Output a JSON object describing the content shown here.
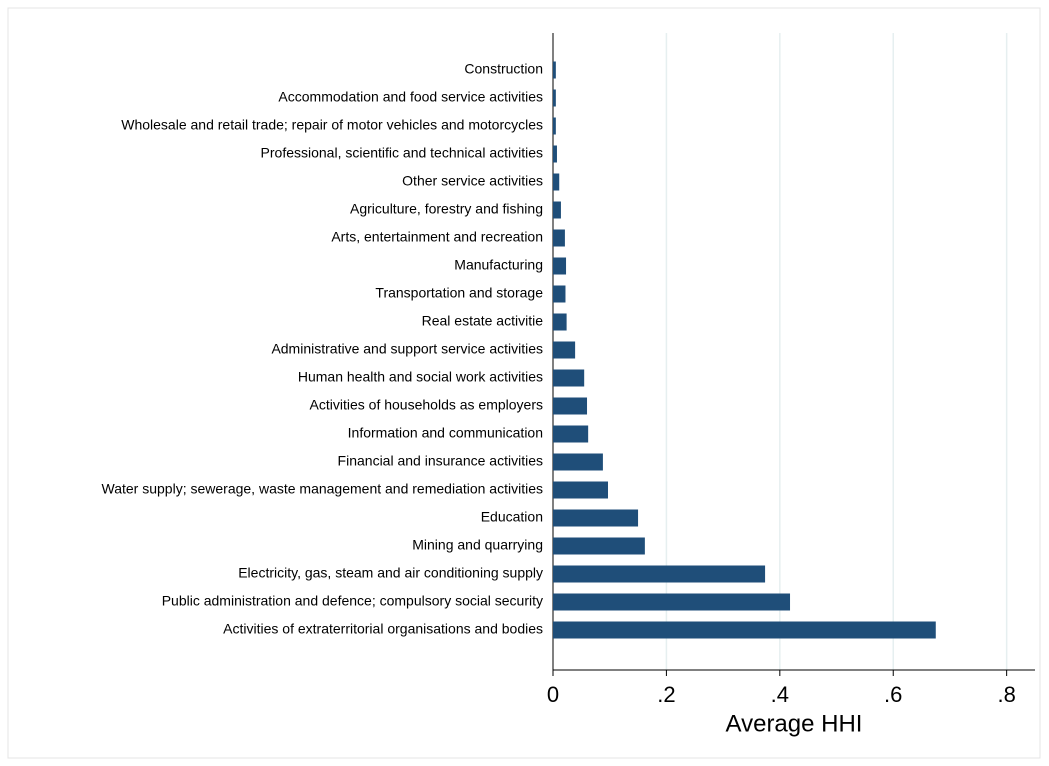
{
  "chart_data": {
    "type": "bar",
    "orientation": "horizontal",
    "x_label": "Average HHI",
    "categories": [
      "Construction",
      "Accommodation and food service activities",
      "Wholesale and retail trade; repair of motor vehicles and motorcycles",
      "Professional, scientific and technical activities",
      "Other service activities",
      "Agriculture, forestry and fishing",
      "Arts, entertainment and recreation",
      "Manufacturing",
      "Transportation and storage ",
      "Real estate activitie",
      "Administrative and support service activities",
      "Human health and social work activities",
      "Activities of households as employers",
      "Information and communication",
      "Financial and insurance activities",
      "Water supply; sewerage, waste management and remediation activities",
      "Education",
      "Mining and quarrying",
      "Electricity, gas, steam and air conditioning supply",
      "Public administration and defence; compulsory social security",
      "Activities of extraterritorial organisations and bodies"
    ],
    "values": [
      0.005,
      0.005,
      0.005,
      0.007,
      0.011,
      0.014,
      0.021,
      0.023,
      0.022,
      0.024,
      0.039,
      0.055,
      0.06,
      0.062,
      0.088,
      0.097,
      0.15,
      0.162,
      0.374,
      0.418,
      0.675
    ],
    "color": "#1f4e79",
    "xlim": [
      0,
      0.85
    ],
    "xticks": [
      0,
      {
        "value": 0.2,
        "label": ".2"
      },
      {
        "value": 0.4,
        "label": ".4"
      },
      {
        "value": 0.6,
        "label": ".6"
      },
      {
        "value": 0.8,
        "label": ".8"
      }
    ],
    "grid": true
  }
}
